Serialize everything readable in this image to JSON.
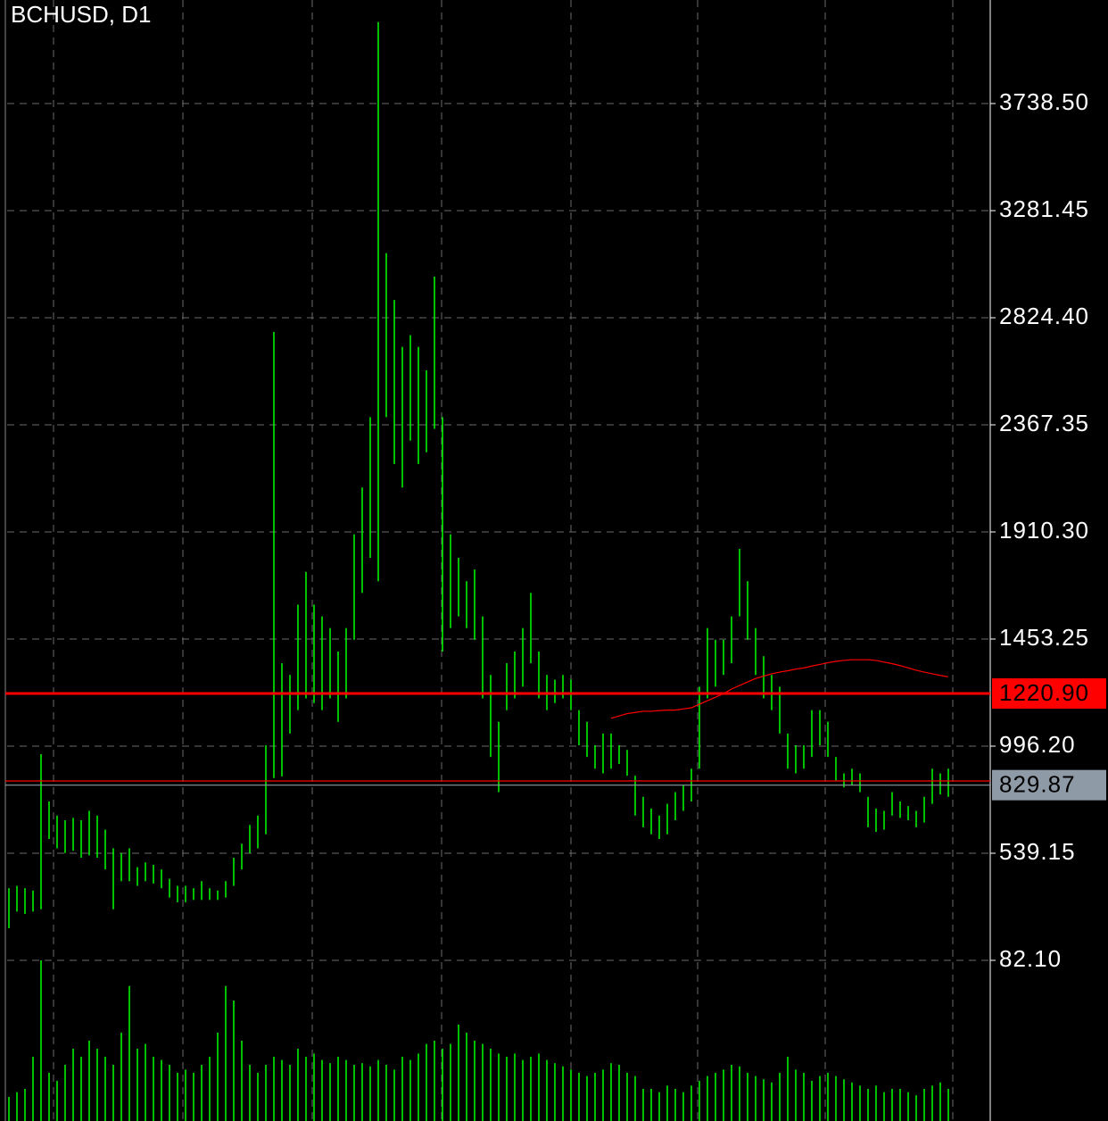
{
  "chart_data": {
    "type": "ohlc",
    "title": "BCHUSD, D1",
    "color": "#00ff00",
    "high": [
      390,
      400,
      390,
      380,
      962,
      760,
      700,
      680,
      690,
      680,
      720,
      700,
      640,
      560,
      540,
      560,
      480,
      500,
      490,
      470,
      430,
      400,
      400,
      390,
      420,
      390,
      380,
      420,
      520,
      580,
      660,
      700,
      1000,
      2764,
      1350,
      1300,
      1600,
      1740,
      1600,
      1550,
      1500,
      1400,
      1500,
      1900,
      2100,
      2400,
      4086,
      3100,
      2900,
      2700,
      2750,
      2700,
      2600,
      3000,
      2400,
      1900,
      1800,
      1700,
      1750,
      1550,
      1300,
      1100,
      1350,
      1400,
      1500,
      1650,
      1400,
      1300,
      1280,
      1300,
      1280,
      1150,
      1100,
      1000,
      1050,
      1050,
      1000,
      980,
      870,
      780,
      730,
      700,
      750,
      800,
      830,
      900,
      1250,
      1500,
      1450,
      1450,
      1550,
      1838,
      1700,
      1500,
      1380,
      1300,
      1250,
      1050,
      1000,
      1000,
      1150,
      1150,
      1100,
      950,
      880,
      900,
      880,
      780,
      730,
      720,
      800,
      760,
      740,
      720,
      780,
      900,
      880,
      900
    ],
    "low": [
      219,
      290,
      280,
      290,
      300,
      600,
      560,
      540,
      550,
      520,
      530,
      520,
      470,
      300,
      420,
      420,
      400,
      420,
      410,
      390,
      350,
      330,
      330,
      340,
      340,
      340,
      340,
      350,
      400,
      470,
      540,
      560,
      620,
      860,
      867,
      1050,
      1150,
      1200,
      1180,
      1150,
      1200,
      1100,
      1200,
      1450,
      1650,
      1800,
      1700,
      2400,
      2200,
      2100,
      2300,
      2200,
      2250,
      2350,
      1400,
      1500,
      1550,
      1500,
      1450,
      1200,
      950,
      800,
      1150,
      1200,
      1250,
      1350,
      1200,
      1150,
      1180,
      1200,
      1150,
      1000,
      950,
      900,
      880,
      900,
      920,
      870,
      700,
      650,
      620,
      600,
      620,
      680,
      720,
      760,
      900,
      1200,
      1250,
      1300,
      1350,
      1550,
      1450,
      1300,
      1200,
      1150,
      1050,
      900,
      880,
      900,
      950,
      1000,
      950,
      850,
      820,
      830,
      800,
      650,
      630,
      640,
      700,
      690,
      680,
      650,
      670,
      750,
      790,
      780
    ],
    "ma": {
      "color": "#ff0000",
      "values": [
        null,
        null,
        null,
        null,
        null,
        null,
        null,
        null,
        null,
        null,
        null,
        null,
        null,
        null,
        null,
        null,
        null,
        null,
        null,
        null,
        null,
        null,
        null,
        null,
        null,
        null,
        null,
        null,
        null,
        null,
        null,
        null,
        null,
        null,
        null,
        null,
        null,
        null,
        null,
        null,
        null,
        null,
        null,
        null,
        null,
        null,
        null,
        null,
        null,
        null,
        null,
        null,
        null,
        null,
        null,
        null,
        null,
        null,
        null,
        null,
        null,
        null,
        null,
        null,
        null,
        null,
        null,
        null,
        null,
        null,
        null,
        null,
        null,
        null,
        null,
        1115,
        1125,
        1135,
        1140,
        1145,
        1145,
        1148,
        1150,
        1150,
        1155,
        1160,
        1175,
        1190,
        1205,
        1220,
        1240,
        1255,
        1270,
        1285,
        1295,
        1305,
        1312,
        1318,
        1325,
        1330,
        1338,
        1345,
        1352,
        1358,
        1362,
        1365,
        1365,
        1365,
        1362,
        1355,
        1348,
        1340,
        1330,
        1320,
        1312,
        1305,
        1298,
        1292
      ]
    },
    "volume": [
      15,
      18,
      20,
      40,
      100,
      30,
      25,
      35,
      45,
      40,
      50,
      45,
      40,
      35,
      55,
      84,
      45,
      48,
      40,
      38,
      35,
      30,
      32,
      30,
      35,
      40,
      55,
      84,
      75,
      50,
      35,
      30,
      35,
      40,
      38,
      35,
      45,
      40,
      42,
      38,
      36,
      40,
      38,
      35,
      36,
      34,
      38,
      35,
      32,
      40,
      38,
      42,
      48,
      50,
      45,
      48,
      60,
      55,
      50,
      48,
      45,
      42,
      40,
      42,
      38,
      40,
      42,
      38,
      36,
      34,
      32,
      30,
      28,
      30,
      32,
      36,
      35,
      30,
      28,
      20,
      20,
      18,
      22,
      20,
      18,
      22,
      25,
      28,
      30,
      32,
      35,
      34,
      30,
      28,
      26,
      24,
      30,
      40,
      32,
      30,
      25,
      28,
      30,
      28,
      26,
      24,
      22,
      20,
      22,
      18,
      20,
      20,
      18,
      16,
      20,
      22,
      24,
      20
    ],
    "vlim": [
      0,
      100
    ],
    "ylim": [
      -603.5,
      4180.3
    ],
    "yticks": [
      {
        "value": 82.1,
        "label": "82.10"
      },
      539.15,
      {
        "value": 996.2,
        "label": "996.20"
      },
      1453.25,
      {
        "value": 1910.3,
        "label": "1910.30"
      },
      2367.35,
      {
        "value": 2824.4,
        "label": "2824.40"
      },
      {
        "value": 3281.45,
        "label": "3281.45"
      },
      {
        "value": 3738.5,
        "label": "3738.50"
      }
    ],
    "grid": true,
    "levels": [
      {
        "value": 1220.9,
        "label": "1220.90",
        "color": "#ff0000"
      },
      {
        "value": 847.6,
        "color": "#ff0000"
      },
      {
        "value": 829.87,
        "color": "#8e9aa6"
      }
    ]
  }
}
